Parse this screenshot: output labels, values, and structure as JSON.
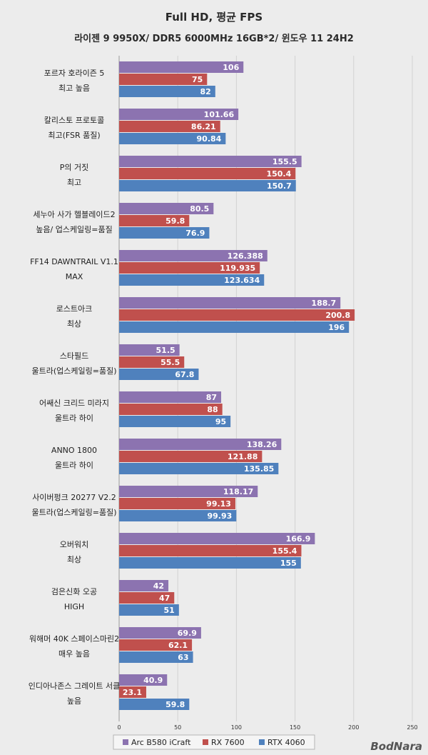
{
  "chart_data": {
    "type": "bar",
    "orientation": "horizontal",
    "title": "Full HD, 평균 FPS",
    "subtitle": "라이젠 9 9950X/ DDR5 6000MHz 16GB*2/ 윈도우 11 24H2",
    "categories": [
      [
        "포르자 호라이즌 5",
        "최고 높음"
      ],
      [
        "칼리스토 프로토콜",
        "최고(FSR 품질)"
      ],
      [
        "P의 거짓",
        "최고"
      ],
      [
        "세누아 사가 헬블레이드2",
        "높음/ 업스케일링=품질"
      ],
      [
        "FF14 DAWNTRAIL V1.1",
        "MAX"
      ],
      [
        "로스트아크",
        "최상"
      ],
      [
        "스타필드",
        "울트라(업스케일링=품질)"
      ],
      [
        "어쌔신 크리드 미라지",
        "울트라 하이"
      ],
      [
        "ANNO 1800",
        "울트라 하이"
      ],
      [
        "사이버펑크 20277 V2.2",
        "울트라(업스케일링=품질)"
      ],
      [
        "오버워치",
        "최상"
      ],
      [
        "검은신화 오공",
        "HIGH"
      ],
      [
        "워해머 40K 스페이스마린2",
        "매우 높음"
      ],
      [
        "인디아나존스 그레이트 서클",
        "높음"
      ]
    ],
    "series": [
      {
        "name": "Arc B580 iCraft",
        "color": "#8c73b0",
        "values": [
          106,
          101.66,
          155.5,
          80.5,
          126.388,
          188.7,
          51.5,
          87,
          138.26,
          118.17,
          166.9,
          42,
          69.9,
          40.9
        ],
        "labels": [
          "106",
          "101.66",
          "155.5",
          "80.5",
          "126.388",
          "188.7",
          "51.5",
          "87",
          "138.26",
          "118.17",
          "166.9",
          "42",
          "69.9",
          "40.9"
        ]
      },
      {
        "name": "RX 7600",
        "color": "#c0504d",
        "values": [
          75,
          86.21,
          150.4,
          59.8,
          119.935,
          200.8,
          55.5,
          88,
          121.88,
          99.13,
          155.4,
          47,
          62.1,
          23.1
        ],
        "labels": [
          "75",
          "86.21",
          "150.4",
          "59.8",
          "119.935",
          "200.8",
          "55.5",
          "88",
          "121.88",
          "99.13",
          "155.4",
          "47",
          "62.1",
          "23.1"
        ]
      },
      {
        "name": "RTX 4060",
        "color": "#4f81bd",
        "values": [
          82,
          90.84,
          150.7,
          76.9,
          123.634,
          196,
          67.8,
          95,
          135.85,
          99.93,
          155,
          51,
          63,
          59.8
        ],
        "labels": [
          "82",
          "90.84",
          "150.7",
          "76.9",
          "123.634",
          "196",
          "67.8",
          "95",
          "135.85",
          "99.93",
          "155",
          "51",
          "63",
          "59.8"
        ]
      }
    ],
    "xlim": [
      0,
      250
    ],
    "xticks": [
      0,
      50,
      100,
      150,
      200,
      250
    ],
    "grid": true,
    "legend": "bottom-center"
  },
  "watermark": "BodNara"
}
